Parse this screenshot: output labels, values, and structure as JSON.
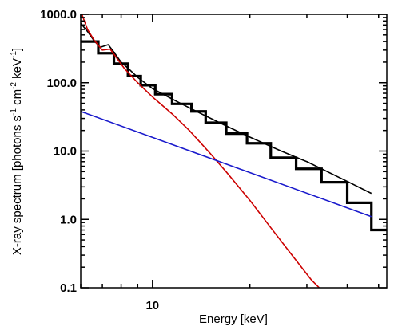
{
  "chart_data": {
    "type": "line",
    "title": "",
    "xlabel": "Energy [keV]",
    "ylabel_parts": {
      "base": "X-ray spectrum [photons s",
      "exp1": "-1",
      "mid1": " cm",
      "exp2": "-2",
      "mid2": " keV",
      "exp3": "-1",
      "end": "]"
    },
    "x_scale": "log",
    "y_scale": "log",
    "xlim": [
      6.0,
      53.0
    ],
    "ylim": [
      0.1,
      1000.0
    ],
    "x_ticks": [
      {
        "value": 10,
        "label": "10"
      }
    ],
    "y_ticks": [
      {
        "value": 0.1,
        "label": "0.1"
      },
      {
        "value": 1.0,
        "label": "1.0"
      },
      {
        "value": 10.0,
        "label": "10.0"
      },
      {
        "value": 100.0,
        "label": "100.0"
      },
      {
        "value": 1000.0,
        "label": "1000.0"
      }
    ],
    "grid": false,
    "series": [
      {
        "name": "",
        "kind": "histogram",
        "color": "#000000",
        "edges": [
          6.0,
          6.8,
          7.6,
          8.4,
          9.2,
          10.2,
          11.5,
          13.2,
          14.6,
          16.9,
          19.6,
          23.2,
          27.8,
          33.3,
          40.0,
          47.5,
          53.0
        ],
        "values": [
          400,
          270,
          190,
          125,
          92,
          68,
          49,
          38,
          26,
          18,
          13,
          8,
          5.5,
          3.5,
          1.75,
          0.7
        ]
      },
      {
        "name": "",
        "kind": "line",
        "color": "#000000",
        "x": [
          6.0,
          6.3,
          6.6,
          6.9,
          7.3,
          7.6,
          8.0,
          8.5,
          9.0,
          10.0,
          12.0,
          14.0,
          17.0,
          20.0,
          25.0,
          30.0,
          40.0,
          47.5
        ],
        "y": [
          740,
          560,
          410,
          330,
          360,
          280,
          200,
          155,
          120,
          82,
          52,
          36,
          23,
          16,
          10,
          7,
          3.6,
          2.4
        ]
      },
      {
        "name": "",
        "kind": "line",
        "color": "#cc0000",
        "x": [
          6.05,
          6.3,
          6.6,
          7.0,
          7.4,
          7.7,
          8.2,
          9.0,
          10.0,
          11.5,
          13.0,
          15.0,
          17.0,
          20.0,
          23.0,
          27.0,
          31.0,
          33.5
        ],
        "y": [
          1000,
          600,
          420,
          300,
          310,
          240,
          160,
          100,
          62,
          35,
          20,
          9.5,
          4.8,
          1.9,
          0.8,
          0.3,
          0.13,
          0.09
        ]
      },
      {
        "name": "",
        "kind": "line",
        "color": "#1a1acc",
        "x": [
          6.0,
          47.5
        ],
        "y": [
          38,
          1.1
        ]
      }
    ]
  }
}
